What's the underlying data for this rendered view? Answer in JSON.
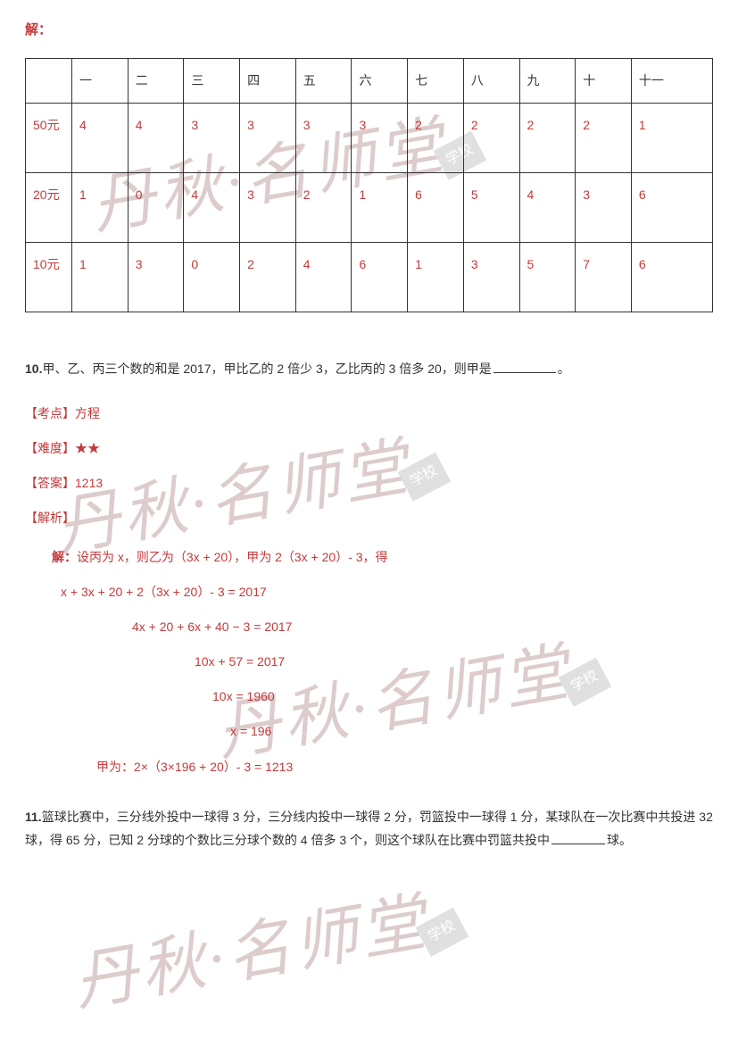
{
  "solution_header": "解：",
  "table": {
    "header_row": [
      "",
      "一",
      "二",
      "三",
      "四",
      "五",
      "六",
      "七",
      "八",
      "九",
      "十",
      "十一"
    ],
    "rows": [
      {
        "label": "50元",
        "cells": [
          "4",
          "4",
          "3",
          "3",
          "3",
          "3",
          "2",
          "2",
          "2",
          "2",
          "1"
        ]
      },
      {
        "label": "20元",
        "cells": [
          "1",
          "0",
          "4",
          "3",
          "2",
          "1",
          "6",
          "5",
          "4",
          "3",
          "6"
        ]
      },
      {
        "label": "10元",
        "cells": [
          "1",
          "3",
          "0",
          "2",
          "4",
          "6",
          "1",
          "3",
          "5",
          "7",
          "6"
        ]
      }
    ],
    "border_color": "#333333",
    "text_color": "#c33a3a"
  },
  "problem10": {
    "number": "10.",
    "text_before": "甲、乙、丙三个数的和是 2017，甲比乙的 2 倍少 3，乙比丙的 3 倍多 20，则甲是",
    "text_after": "。"
  },
  "meta": {
    "kaodian_label": "【考点】",
    "kaodian_value": "方程",
    "nandu_label": "【难度】",
    "nandu_value": "★★",
    "daan_label": "【答案】",
    "daan_value": "1213",
    "jiexi_label": "【解析】"
  },
  "solution": {
    "intro_bold": "解：",
    "intro_rest": "设丙为 x，则乙为（3x + 20），甲为 2（3x + 20）- 3，得",
    "line1": "x + 3x + 20 + 2（3x + 20）- 3 = 2017",
    "line2": "4x + 20 + 6x + 40 − 3 = 2017",
    "line3": "10x + 57 = 2017",
    "line4": "10x = 1960",
    "line5": "x = 196",
    "final": "甲为：2×（3×196 + 20）- 3 = 1213"
  },
  "problem11": {
    "number": "11.",
    "text1": "篮球比赛中，三分线外投中一球得 3 分，三分线内投中一球得 2 分，罚篮投中一球得 1 分，某球队在一次比赛中共投进 32 球，得 65 分，已知 2 分球的个数比三分球个数的 4 倍多 3 个，则这个球队在比赛中罚篮共投中",
    "text2": "球。"
  },
  "watermark": {
    "text": "丹秋·名师堂",
    "badge": "学校"
  },
  "colors": {
    "red": "#c33a3a",
    "black": "#333333",
    "background": "#ffffff"
  }
}
